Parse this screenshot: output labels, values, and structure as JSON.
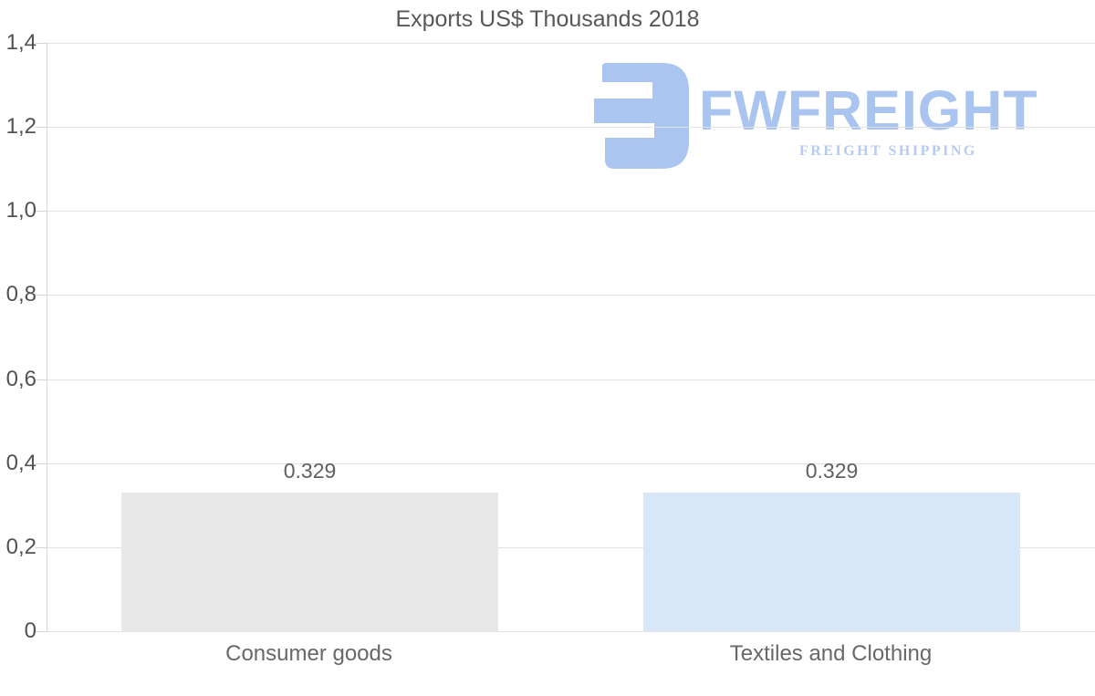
{
  "chart_data": {
    "type": "bar",
    "title": "Exports US$ Thousands 2018",
    "categories": [
      "Consumer goods",
      "Textiles and Clothing"
    ],
    "values": [
      0.329,
      0.329
    ],
    "value_labels": [
      "0.329",
      "0.329"
    ],
    "bar_colors": [
      "#e8e8e8",
      "#d7e7f8"
    ],
    "ylim": [
      0,
      1.4
    ],
    "ytick_values": [
      1.4,
      1.2,
      1.0,
      0.8,
      0.6,
      0.4,
      0.2,
      0
    ],
    "ytick_labels": [
      "1,4",
      "1,2",
      "1,0",
      "0,8",
      "0,6",
      "0,4",
      "0,2",
      "0"
    ],
    "xlabel": "",
    "ylabel": "",
    "grid": "horizontal",
    "legend": "none"
  },
  "watermark": {
    "brand": "FWFREIGHT",
    "tagline": "FREIGHT SHIPPING",
    "logo_color": "#aac5ef",
    "brand_color": "#a9c4ee",
    "tagline_color": "#b6cbf1"
  },
  "colors": {
    "background": "#ffffff",
    "title_text": "#58585a",
    "axis_text": "#515254",
    "gridline": "#e2e2e2",
    "axis_line": "#d6d6d6"
  }
}
